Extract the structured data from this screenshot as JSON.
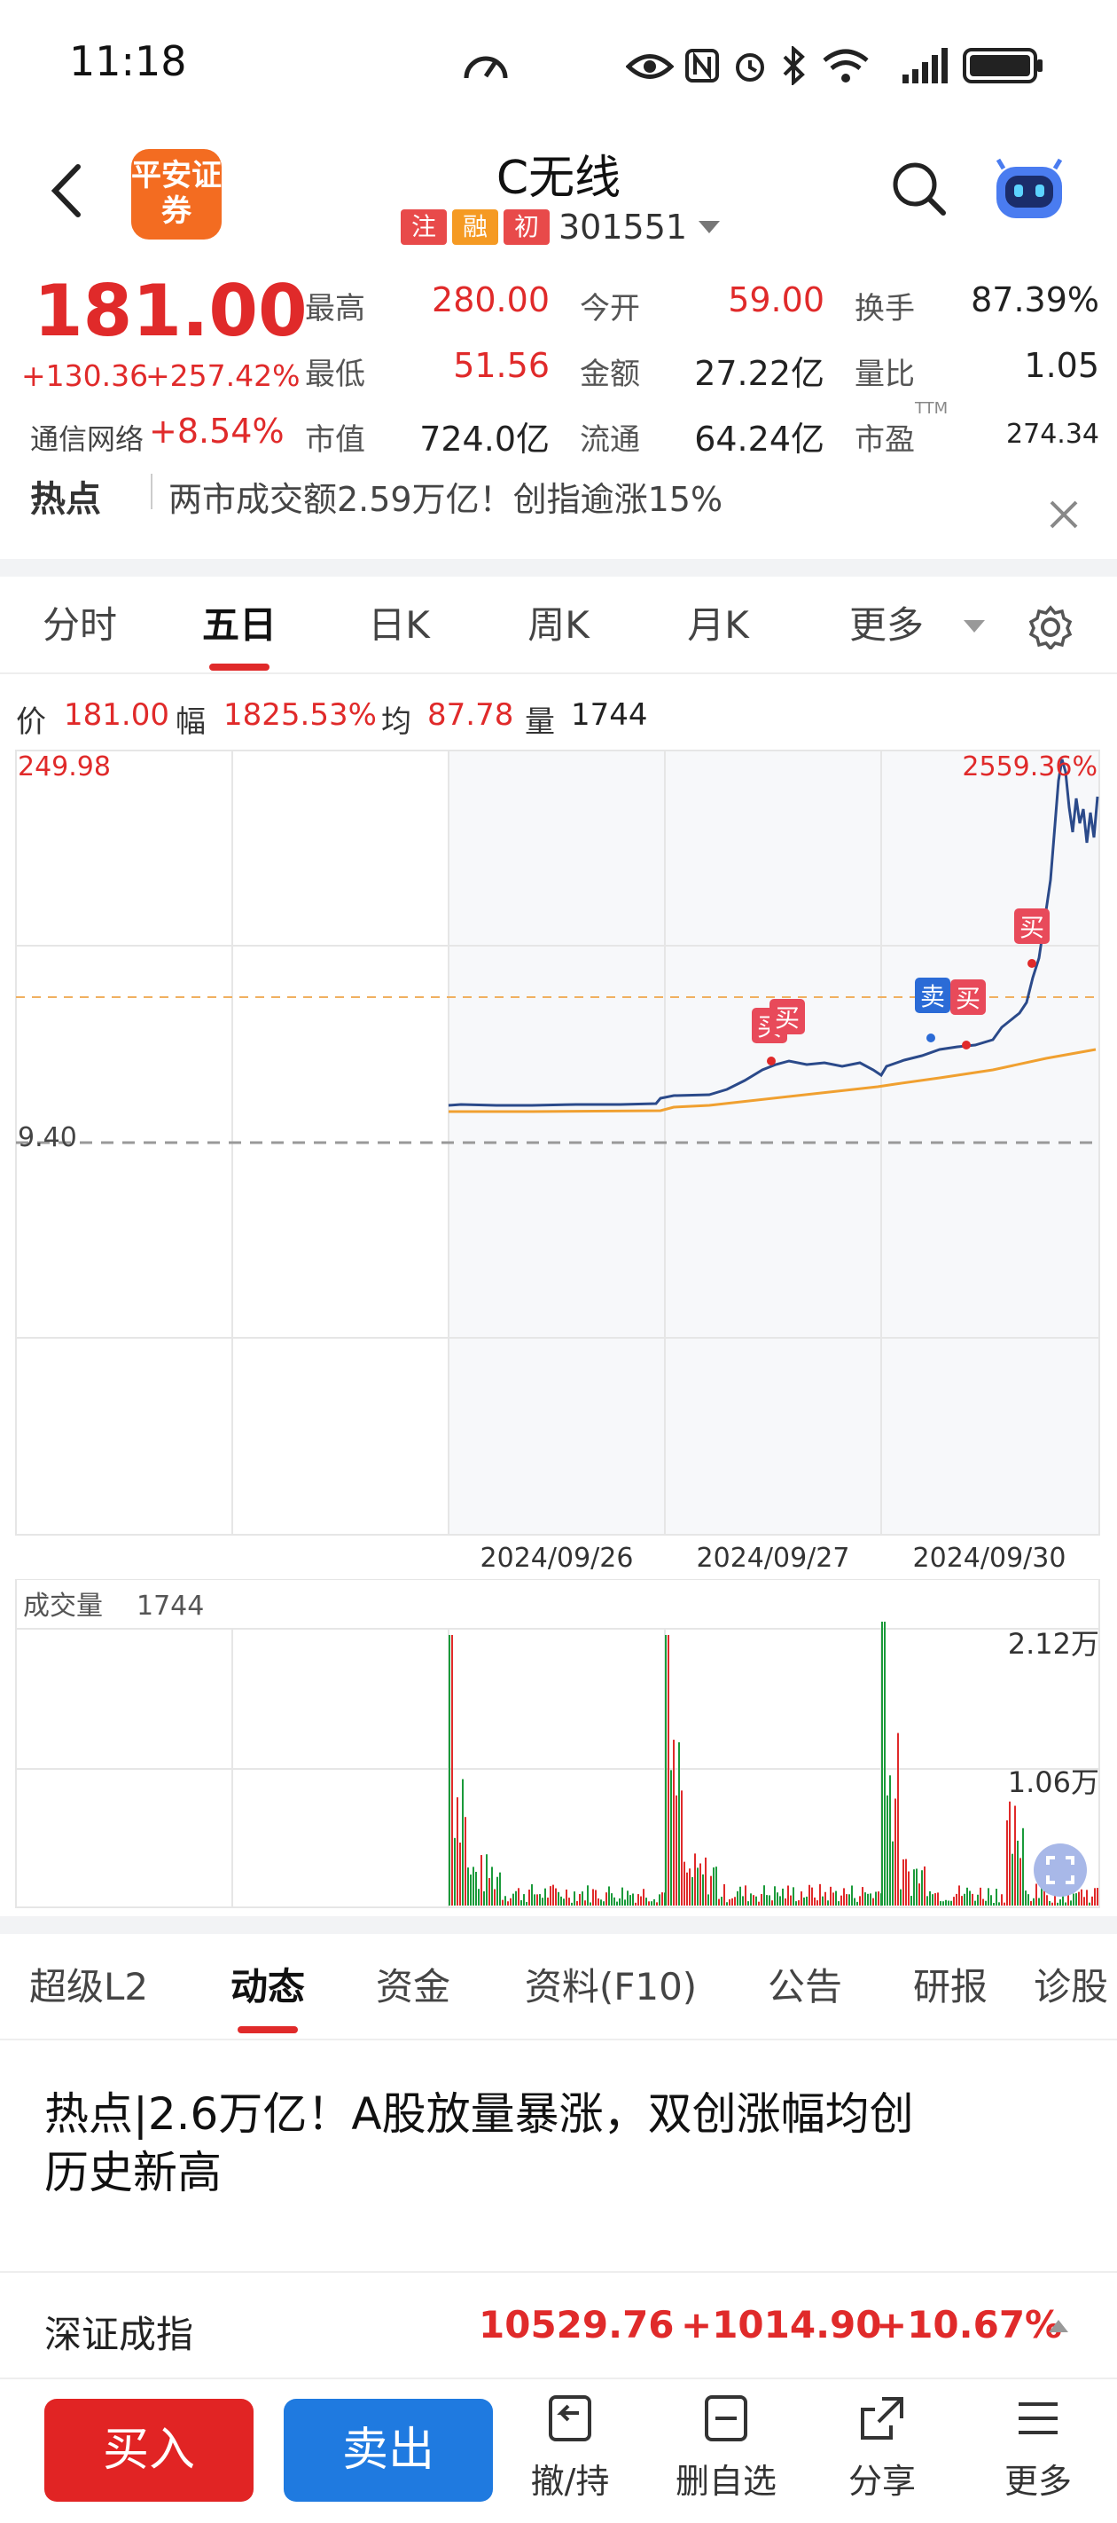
{
  "status": {
    "time": "11:18"
  },
  "header": {
    "title": "C无线",
    "tags": [
      "注",
      "融",
      "初"
    ],
    "code": "301551",
    "logo_text": "平安证券"
  },
  "quote": {
    "price": "181.00",
    "change": "+130.36",
    "change_pct": "+257.42%",
    "sector_label": "通信网络",
    "sector_pct": "+8.54%",
    "high_label": "最高",
    "high": "280.00",
    "open_label": "今开",
    "open": "59.00",
    "turnover_label": "换手",
    "turnover": "87.39%",
    "low_label": "最低",
    "low": "51.56",
    "amount_label": "金额",
    "amount": "27.22亿",
    "volratio_label": "量比",
    "volratio": "1.05",
    "mktcap_label": "市值",
    "mktcap": "724.0亿",
    "float_label": "流通",
    "float": "64.24亿",
    "pe_label": "市盈",
    "pe_sup": "TTM",
    "pe": "274.34"
  },
  "hot": {
    "label": "热点",
    "text": "两市成交额2.59万亿！创指逾涨15%"
  },
  "tabs": [
    "分时",
    "五日",
    "日K",
    "周K",
    "月K",
    "更多"
  ],
  "active_tab": "五日",
  "infobar": {
    "price_label": "价",
    "price": "181.00",
    "amp_label": "幅",
    "amp": "1825.53%",
    "avg_label": "均",
    "avg": "87.78",
    "vol_label": "量",
    "vol": "1744"
  },
  "chart_data": {
    "type": "line",
    "x_labels": [
      "2024/09/26",
      "2024/09/27",
      "2024/09/30"
    ],
    "y_max_label": "249.98",
    "y_ref_label": "9.40",
    "pct_label": "2559.36%",
    "markers": [
      "买",
      "买",
      "卖",
      "买",
      "买"
    ],
    "volume_label": "成交量",
    "volume_value": "1744",
    "volume_ticks": [
      "2.12万",
      "1.06万"
    ],
    "colors": {
      "price_line": "#2b4a8a",
      "avg_line": "#f0a030",
      "up": "#e02a2a",
      "down": "#1a9a3a"
    }
  },
  "ftabs": [
    "超级L2",
    "动态",
    "资金",
    "资料(F10)",
    "公告",
    "研报",
    "诊股"
  ],
  "active_ftab": "动态",
  "news": {
    "title_line1": "热点|2.6万亿！A股放量暴涨，双创涨幅均创",
    "title_line2": "历史新高"
  },
  "index": {
    "name": "深证成指",
    "value": "10529.76",
    "change": "+1014.90",
    "pct": "+10.67%"
  },
  "bottom": {
    "buy": "买入",
    "sell": "卖出",
    "cancel": "撤/持",
    "delete": "删自选",
    "share": "分享",
    "more": "更多"
  }
}
